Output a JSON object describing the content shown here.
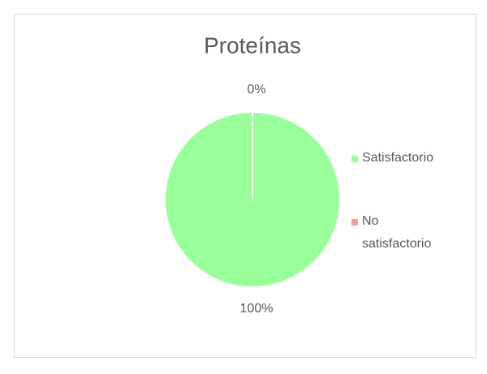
{
  "chart_data": {
    "type": "pie",
    "title": "Proteínas",
    "categories": [
      "Satisfactorio",
      "No satisfactorio"
    ],
    "values": [
      100,
      0
    ],
    "value_labels": [
      "100%",
      "0%"
    ],
    "colors": [
      "#99ff99",
      "#ff9999"
    ],
    "legend": "right"
  }
}
